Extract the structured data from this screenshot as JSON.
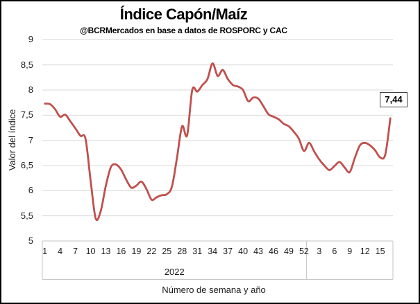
{
  "chart_data": {
    "type": "line",
    "title": "Índice Capón/Maíz",
    "subtitle": "@BCRMercados en base a datos de ROSPORC y CAC",
    "xlabel": "Número de semana y año",
    "ylabel": "Valor del índice",
    "ylim": [
      5,
      9
    ],
    "grid": "horizontal",
    "legend": "none",
    "smoothed": true,
    "line_color": "#C0504D",
    "gridline_color": "#D9D9D9",
    "axis_line_color": "#C6C6C6",
    "last_value_label": "7,44",
    "y_ticks": [
      {
        "label": "9",
        "value": 9
      },
      {
        "label": "8,5",
        "value": 8.5
      },
      {
        "label": "8",
        "value": 8
      },
      {
        "label": "7,5",
        "value": 7.5
      },
      {
        "label": "7",
        "value": 7
      },
      {
        "label": "6,5",
        "value": 6.5
      },
      {
        "label": "6",
        "value": 6
      },
      {
        "label": "5,5",
        "value": 5.5
      },
      {
        "label": "5",
        "value": 5
      }
    ],
    "x_tick_interval": 3,
    "x_groups": [
      {
        "label": "2022",
        "count": 52
      },
      {
        "label": "",
        "count": 17
      }
    ],
    "categories": [
      "1",
      "2",
      "3",
      "4",
      "5",
      "6",
      "7",
      "8",
      "9",
      "10",
      "11",
      "12",
      "13",
      "14",
      "15",
      "16",
      "17",
      "18",
      "19",
      "20",
      "21",
      "22",
      "23",
      "24",
      "25",
      "26",
      "27",
      "28",
      "29",
      "30",
      "31",
      "32",
      "33",
      "34",
      "35",
      "36",
      "37",
      "38",
      "39",
      "40",
      "41",
      "42",
      "43",
      "44",
      "45",
      "46",
      "47",
      "48",
      "49",
      "50",
      "51",
      "52",
      "1",
      "2",
      "3",
      "4",
      "5",
      "6",
      "7",
      "8",
      "9",
      "10",
      "11",
      "12",
      "13",
      "14",
      "15",
      "16",
      "17"
    ],
    "values": [
      7.73,
      7.72,
      7.62,
      7.47,
      7.51,
      7.38,
      7.24,
      7.09,
      7.03,
      6.2,
      5.45,
      5.6,
      6.1,
      6.47,
      6.52,
      6.42,
      6.22,
      6.06,
      6.1,
      6.18,
      6.03,
      5.82,
      5.87,
      5.91,
      5.93,
      6.08,
      6.65,
      7.28,
      7.1,
      8.0,
      7.97,
      8.1,
      8.22,
      8.53,
      8.28,
      8.4,
      8.22,
      8.1,
      8.07,
      8.0,
      7.78,
      7.85,
      7.83,
      7.68,
      7.52,
      7.47,
      7.42,
      7.33,
      7.28,
      7.17,
      7.03,
      6.79,
      6.95,
      6.78,
      6.62,
      6.5,
      6.41,
      6.49,
      6.57,
      6.46,
      6.37,
      6.65,
      6.9,
      6.95,
      6.9,
      6.8,
      6.66,
      6.72,
      7.44
    ]
  }
}
